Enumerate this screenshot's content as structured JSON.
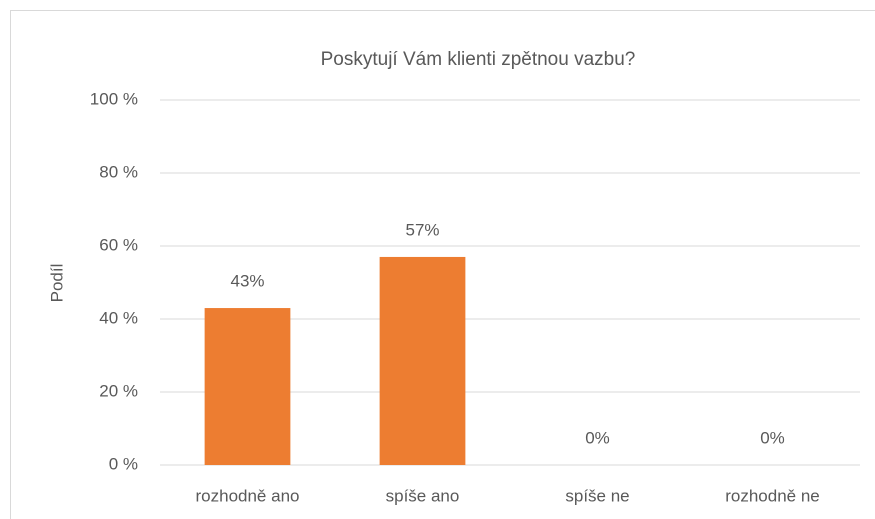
{
  "chart_data": {
    "type": "bar",
    "title": "Poskytují Vám klienti zpětnou vazbu?",
    "y_label": "Podíl",
    "categories": [
      "rozhodně ano",
      "spíše ano",
      "spíše ne",
      "rozhodně ne"
    ],
    "values": [
      43,
      57,
      0,
      0
    ],
    "value_labels": [
      "43%",
      "57%",
      "0%",
      "0%"
    ],
    "color": "#ed7d31",
    "ylim": [
      0,
      100
    ],
    "yticks": [
      {
        "value": 0,
        "label": "0 %"
      },
      {
        "value": 20,
        "label": "20 %"
      },
      {
        "value": 40,
        "label": "40 %"
      },
      {
        "value": 60,
        "label": "60 %"
      },
      {
        "value": 80,
        "label": "80 %"
      },
      {
        "value": 100,
        "label": "100 %"
      }
    ],
    "grid": true
  }
}
